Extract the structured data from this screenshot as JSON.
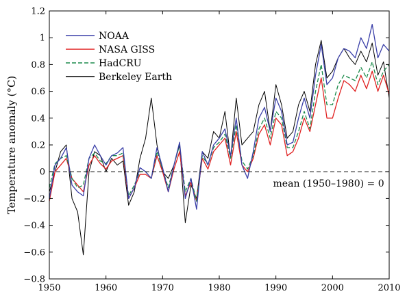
{
  "chart_data": {
    "type": "line",
    "ylabel": "Temperature anomaly (°C)",
    "xlabel": "",
    "xlim": [
      1950,
      2010
    ],
    "ylim": [
      -0.8,
      1.2
    ],
    "xticks": [
      1950,
      1960,
      1970,
      1980,
      1990,
      2000,
      2010
    ],
    "yticks": [
      -0.8,
      -0.6,
      -0.4,
      -0.2,
      0,
      0.2,
      0.4,
      0.6,
      0.8,
      1,
      1.2
    ],
    "ytick_labels": [
      "−0.8",
      "−0.6",
      "−0.4",
      "−0.2",
      "0",
      "0.2",
      "0.4",
      "0.6",
      "0.8",
      "1",
      "1.2"
    ],
    "grid": false,
    "legend_position": "top-left",
    "annotation": "mean (1950–1980) = 0",
    "reference_line": 0,
    "series": [
      {
        "name": "NOAA",
        "color": "#3a3fa8",
        "dash": "solid",
        "points": [
          [
            1950,
            -0.2
          ],
          [
            1951,
            0.05
          ],
          [
            1952,
            0.1
          ],
          [
            1953,
            0.18
          ],
          [
            1954,
            -0.1
          ],
          [
            1955,
            -0.15
          ],
          [
            1956,
            -0.18
          ],
          [
            1957,
            0.1
          ],
          [
            1958,
            0.2
          ],
          [
            1959,
            0.12
          ],
          [
            1960,
            0.05
          ],
          [
            1961,
            0.12
          ],
          [
            1962,
            0.14
          ],
          [
            1963,
            0.18
          ],
          [
            1964,
            -0.2
          ],
          [
            1965,
            -0.12
          ],
          [
            1966,
            0.03
          ],
          [
            1967,
            0.0
          ],
          [
            1968,
            -0.05
          ],
          [
            1969,
            0.18
          ],
          [
            1970,
            0.03
          ],
          [
            1971,
            -0.15
          ],
          [
            1972,
            0.05
          ],
          [
            1973,
            0.22
          ],
          [
            1974,
            -0.2
          ],
          [
            1975,
            -0.05
          ],
          [
            1976,
            -0.28
          ],
          [
            1977,
            0.15
          ],
          [
            1978,
            0.05
          ],
          [
            1979,
            0.2
          ],
          [
            1980,
            0.25
          ],
          [
            1981,
            0.32
          ],
          [
            1982,
            0.12
          ],
          [
            1983,
            0.4
          ],
          [
            1984,
            0.05
          ],
          [
            1985,
            -0.05
          ],
          [
            1986,
            0.15
          ],
          [
            1987,
            0.4
          ],
          [
            1988,
            0.48
          ],
          [
            1989,
            0.3
          ],
          [
            1990,
            0.55
          ],
          [
            1991,
            0.45
          ],
          [
            1992,
            0.2
          ],
          [
            1993,
            0.22
          ],
          [
            1994,
            0.4
          ],
          [
            1995,
            0.55
          ],
          [
            1996,
            0.4
          ],
          [
            1997,
            0.72
          ],
          [
            1998,
            0.95
          ],
          [
            1999,
            0.65
          ],
          [
            2000,
            0.7
          ],
          [
            2001,
            0.85
          ],
          [
            2002,
            0.92
          ],
          [
            2003,
            0.9
          ],
          [
            2004,
            0.85
          ],
          [
            2005,
            1.0
          ],
          [
            2006,
            0.92
          ],
          [
            2007,
            1.1
          ],
          [
            2008,
            0.85
          ],
          [
            2009,
            0.95
          ],
          [
            2010,
            0.9
          ]
        ]
      },
      {
        "name": "NASA GISS",
        "color": "#e02020",
        "dash": "solid",
        "points": [
          [
            1950,
            -0.22
          ],
          [
            1951,
            0.0
          ],
          [
            1952,
            0.05
          ],
          [
            1953,
            0.1
          ],
          [
            1954,
            -0.05
          ],
          [
            1955,
            -0.1
          ],
          [
            1956,
            -0.15
          ],
          [
            1957,
            0.05
          ],
          [
            1958,
            0.12
          ],
          [
            1959,
            0.06
          ],
          [
            1960,
            0.02
          ],
          [
            1961,
            0.08
          ],
          [
            1962,
            0.1
          ],
          [
            1963,
            0.12
          ],
          [
            1964,
            -0.2
          ],
          [
            1965,
            -0.12
          ],
          [
            1966,
            -0.02
          ],
          [
            1967,
            -0.02
          ],
          [
            1968,
            -0.05
          ],
          [
            1969,
            0.12
          ],
          [
            1970,
            0.0
          ],
          [
            1971,
            -0.15
          ],
          [
            1972,
            0.02
          ],
          [
            1973,
            0.15
          ],
          [
            1974,
            -0.18
          ],
          [
            1975,
            -0.08
          ],
          [
            1976,
            -0.22
          ],
          [
            1977,
            0.1
          ],
          [
            1978,
            0.02
          ],
          [
            1979,
            0.15
          ],
          [
            1980,
            0.2
          ],
          [
            1981,
            0.25
          ],
          [
            1982,
            0.05
          ],
          [
            1983,
            0.3
          ],
          [
            1984,
            0.05
          ],
          [
            1985,
            0.0
          ],
          [
            1986,
            0.1
          ],
          [
            1987,
            0.28
          ],
          [
            1988,
            0.35
          ],
          [
            1989,
            0.2
          ],
          [
            1990,
            0.4
          ],
          [
            1991,
            0.35
          ],
          [
            1992,
            0.12
          ],
          [
            1993,
            0.15
          ],
          [
            1994,
            0.25
          ],
          [
            1995,
            0.4
          ],
          [
            1996,
            0.3
          ],
          [
            1997,
            0.5
          ],
          [
            1998,
            0.7
          ],
          [
            1999,
            0.4
          ],
          [
            2000,
            0.4
          ],
          [
            2001,
            0.55
          ],
          [
            2002,
            0.68
          ],
          [
            2003,
            0.65
          ],
          [
            2004,
            0.6
          ],
          [
            2005,
            0.72
          ],
          [
            2006,
            0.62
          ],
          [
            2007,
            0.75
          ],
          [
            2008,
            0.6
          ],
          [
            2009,
            0.72
          ],
          [
            2010,
            0.58
          ]
        ]
      },
      {
        "name": "HadCRU",
        "color": "#1a8a4a",
        "dash": "dashed",
        "points": [
          [
            1950,
            -0.12
          ],
          [
            1951,
            0.06
          ],
          [
            1952,
            0.1
          ],
          [
            1953,
            0.12
          ],
          [
            1954,
            -0.05
          ],
          [
            1955,
            -0.12
          ],
          [
            1956,
            -0.1
          ],
          [
            1957,
            0.1
          ],
          [
            1958,
            0.14
          ],
          [
            1959,
            0.08
          ],
          [
            1960,
            0.06
          ],
          [
            1961,
            0.12
          ],
          [
            1962,
            0.12
          ],
          [
            1963,
            0.14
          ],
          [
            1964,
            -0.18
          ],
          [
            1965,
            -0.1
          ],
          [
            1966,
            0.0
          ],
          [
            1967,
            0.0
          ],
          [
            1968,
            -0.05
          ],
          [
            1969,
            0.15
          ],
          [
            1970,
            0.02
          ],
          [
            1971,
            -0.12
          ],
          [
            1972,
            0.05
          ],
          [
            1973,
            0.2
          ],
          [
            1974,
            -0.15
          ],
          [
            1975,
            -0.05
          ],
          [
            1976,
            -0.22
          ],
          [
            1977,
            0.12
          ],
          [
            1978,
            0.05
          ],
          [
            1979,
            0.18
          ],
          [
            1980,
            0.22
          ],
          [
            1981,
            0.28
          ],
          [
            1982,
            0.1
          ],
          [
            1983,
            0.35
          ],
          [
            1984,
            0.08
          ],
          [
            1985,
            0.02
          ],
          [
            1986,
            0.12
          ],
          [
            1987,
            0.32
          ],
          [
            1988,
            0.4
          ],
          [
            1989,
            0.25
          ],
          [
            1990,
            0.45
          ],
          [
            1991,
            0.4
          ],
          [
            1992,
            0.18
          ],
          [
            1993,
            0.18
          ],
          [
            1994,
            0.3
          ],
          [
            1995,
            0.45
          ],
          [
            1996,
            0.32
          ],
          [
            1997,
            0.6
          ],
          [
            1998,
            0.8
          ],
          [
            1999,
            0.5
          ],
          [
            2000,
            0.5
          ],
          [
            2001,
            0.65
          ],
          [
            2002,
            0.72
          ],
          [
            2003,
            0.7
          ],
          [
            2004,
            0.68
          ],
          [
            2005,
            0.78
          ],
          [
            2006,
            0.7
          ],
          [
            2007,
            0.82
          ],
          [
            2008,
            0.65
          ],
          [
            2009,
            0.75
          ],
          [
            2010,
            0.8
          ]
        ]
      },
      {
        "name": "Berkeley Earth",
        "color": "#000000",
        "dash": "solid",
        "points": [
          [
            1950,
            -0.15
          ],
          [
            1951,
            0.0
          ],
          [
            1952,
            0.15
          ],
          [
            1953,
            0.2
          ],
          [
            1954,
            -0.2
          ],
          [
            1955,
            -0.3
          ],
          [
            1956,
            -0.62
          ],
          [
            1957,
            0.0
          ],
          [
            1958,
            0.15
          ],
          [
            1959,
            0.12
          ],
          [
            1960,
            0.0
          ],
          [
            1961,
            0.1
          ],
          [
            1962,
            0.05
          ],
          [
            1963,
            0.08
          ],
          [
            1964,
            -0.25
          ],
          [
            1965,
            -0.15
          ],
          [
            1966,
            0.1
          ],
          [
            1967,
            0.25
          ],
          [
            1968,
            0.55
          ],
          [
            1969,
            0.2
          ],
          [
            1970,
            0.0
          ],
          [
            1971,
            -0.05
          ],
          [
            1972,
            0.05
          ],
          [
            1973,
            0.2
          ],
          [
            1974,
            -0.38
          ],
          [
            1975,
            -0.1
          ],
          [
            1976,
            -0.2
          ],
          [
            1977,
            0.15
          ],
          [
            1978,
            0.1
          ],
          [
            1979,
            0.3
          ],
          [
            1980,
            0.25
          ],
          [
            1981,
            0.45
          ],
          [
            1982,
            0.1
          ],
          [
            1983,
            0.55
          ],
          [
            1984,
            0.2
          ],
          [
            1985,
            0.25
          ],
          [
            1986,
            0.3
          ],
          [
            1987,
            0.5
          ],
          [
            1988,
            0.6
          ],
          [
            1989,
            0.3
          ],
          [
            1990,
            0.65
          ],
          [
            1991,
            0.5
          ],
          [
            1992,
            0.25
          ],
          [
            1993,
            0.3
          ],
          [
            1994,
            0.5
          ],
          [
            1995,
            0.6
          ],
          [
            1996,
            0.45
          ],
          [
            1997,
            0.8
          ],
          [
            1998,
            0.98
          ],
          [
            1999,
            0.7
          ],
          [
            2000,
            0.75
          ],
          [
            2001,
            0.85
          ],
          [
            2002,
            0.92
          ],
          [
            2003,
            0.85
          ],
          [
            2004,
            0.8
          ],
          [
            2005,
            0.9
          ],
          [
            2006,
            0.82
          ],
          [
            2007,
            0.96
          ],
          [
            2008,
            0.72
          ],
          [
            2009,
            0.82
          ],
          [
            2010,
            0.55
          ]
        ]
      }
    ]
  }
}
